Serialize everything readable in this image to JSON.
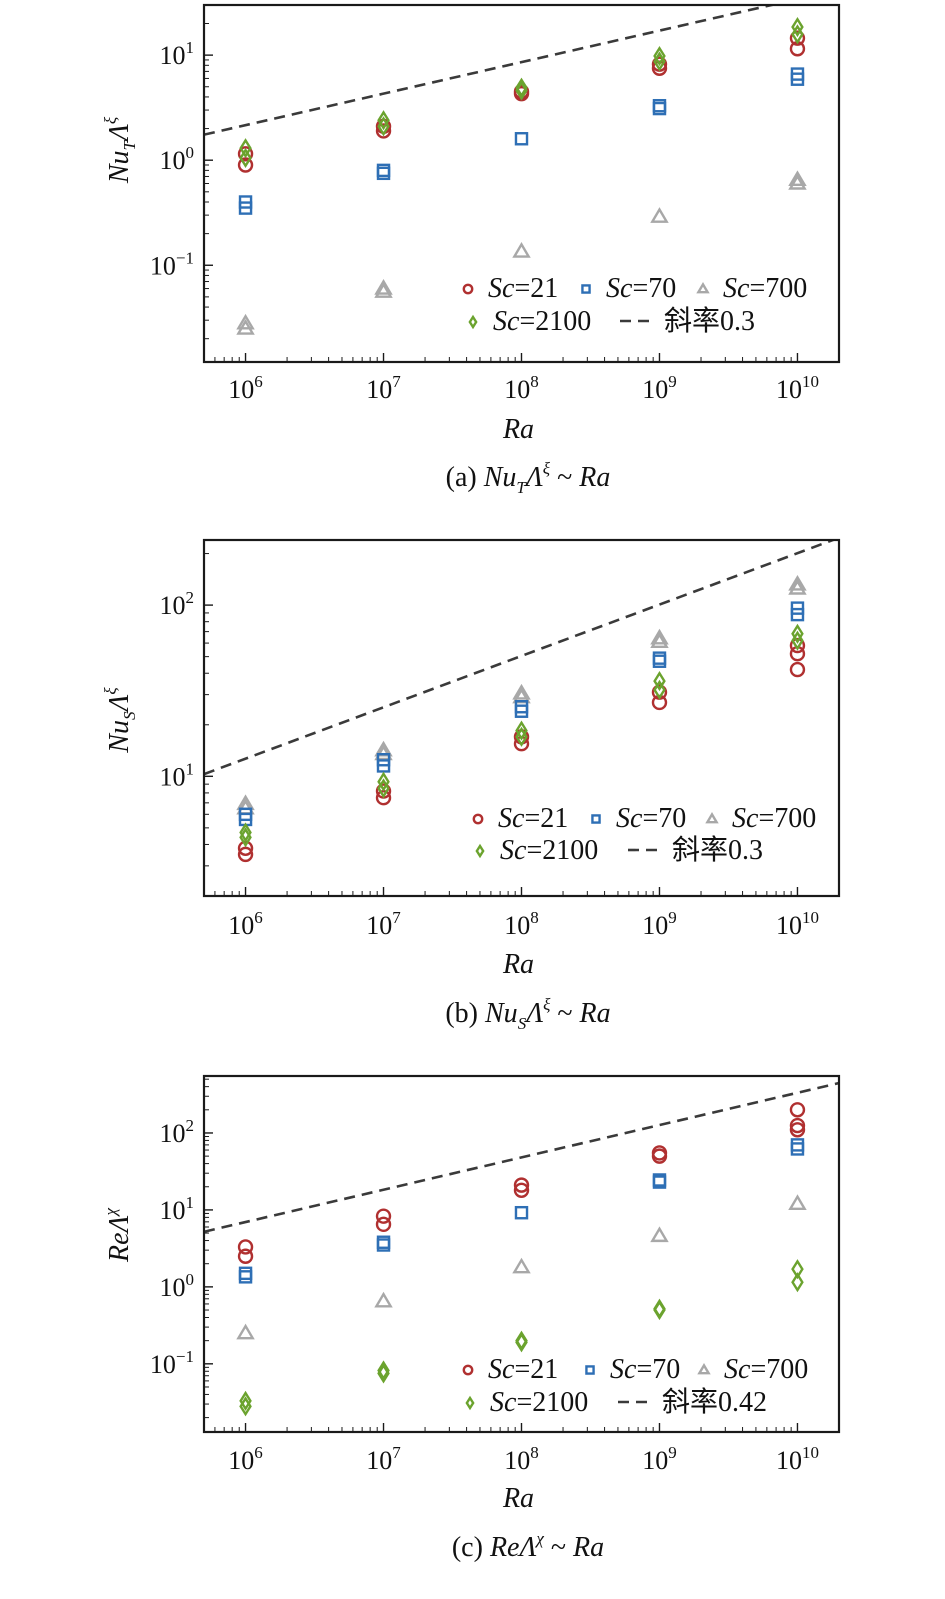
{
  "colors": {
    "sc21": "#b03030",
    "sc70": "#2e6fb5",
    "sc700": "#a8a8a8",
    "sc2100": "#6ba32e",
    "fit": "#3a3a3a"
  },
  "chart_data": [
    {
      "id": "a",
      "type": "scatter",
      "xscale": "log",
      "yscale": "log",
      "xlim": [
        500000,
        20000000000
      ],
      "ylim": [
        0.012,
        30
      ],
      "xticks": [
        1000000,
        10000000,
        100000000,
        1000000000,
        10000000000
      ],
      "xtick_labels": [
        [
          "10",
          "6"
        ],
        [
          "10",
          "7"
        ],
        [
          "10",
          "8"
        ],
        [
          "10",
          "9"
        ],
        [
          "10",
          "10"
        ]
      ],
      "yticks": [
        0.1,
        1,
        10
      ],
      "ytick_labels": [
        [
          "10",
          "−1"
        ],
        [
          "10",
          "0"
        ],
        [
          "10",
          "1"
        ]
      ],
      "xlabel": "Ra",
      "ylabel": {
        "main": "Nu",
        "sub": "T",
        "tail": "Λ",
        "sup": "ξ"
      },
      "caption": {
        "prefix": "(a) ",
        "q_main": "Nu",
        "q_sub": "T",
        "q_tail": "Λ",
        "q_sup": "ξ",
        "rest": " ~ Ra"
      },
      "series": [
        {
          "name": "Sc=21",
          "label_italic": "Sc",
          "label_rest": "=21",
          "marker": "circle",
          "color_key": "sc21",
          "points": [
            [
              1000000,
              0.9
            ],
            [
              1000000,
              1.15
            ],
            [
              10000000,
              1.9
            ],
            [
              10000000,
              2.1
            ],
            [
              100000000,
              4.3
            ],
            [
              100000000,
              4.5
            ],
            [
              1000000000,
              7.5
            ],
            [
              1000000000,
              8.2
            ],
            [
              10000000000,
              11.5
            ],
            [
              10000000000,
              14.5
            ]
          ]
        },
        {
          "name": "Sc=70",
          "label_italic": "Sc",
          "label_rest": "=70",
          "marker": "square",
          "color_key": "sc70",
          "points": [
            [
              1000000,
              0.35
            ],
            [
              1000000,
              0.4
            ],
            [
              10000000,
              0.75
            ],
            [
              10000000,
              0.8
            ],
            [
              100000000,
              1.6
            ],
            [
              1000000000,
              3.1
            ],
            [
              1000000000,
              3.3
            ],
            [
              10000000000,
              5.9
            ],
            [
              10000000000,
              6.6
            ]
          ]
        },
        {
          "name": "Sc=700",
          "label_italic": "Sc",
          "label_rest": "=700",
          "marker": "triangle",
          "color_key": "sc700",
          "points": [
            [
              1000000,
              0.025
            ],
            [
              1000000,
              0.028
            ],
            [
              10000000,
              0.056
            ],
            [
              10000000,
              0.06
            ],
            [
              100000000,
              0.135
            ],
            [
              1000000000,
              0.29
            ],
            [
              10000000000,
              0.6
            ],
            [
              10000000000,
              0.65
            ]
          ]
        },
        {
          "name": "Sc=2100",
          "label_italic": "Sc",
          "label_rest": "=2100",
          "marker": "diamond",
          "color_key": "sc2100",
          "points": [
            [
              1000000,
              1.05
            ],
            [
              1000000,
              1.3
            ],
            [
              10000000,
              2.1
            ],
            [
              10000000,
              2.4
            ],
            [
              100000000,
              4.6
            ],
            [
              100000000,
              4.9
            ],
            [
              1000000000,
              8.7
            ],
            [
              1000000000,
              9.8
            ],
            [
              10000000000,
              15.8
            ],
            [
              10000000000,
              18.5
            ]
          ]
        }
      ],
      "fit": {
        "label": "斜率0.3",
        "slope": 0.3,
        "x0": 500000,
        "y0": 1.75
      }
    },
    {
      "id": "b",
      "type": "scatter",
      "xscale": "log",
      "yscale": "log",
      "xlim": [
        500000,
        20000000000
      ],
      "ylim": [
        2,
        240
      ],
      "xticks": [
        1000000,
        10000000,
        100000000,
        1000000000,
        10000000000
      ],
      "xtick_labels": [
        [
          "10",
          "6"
        ],
        [
          "10",
          "7"
        ],
        [
          "10",
          "8"
        ],
        [
          "10",
          "9"
        ],
        [
          "10",
          "10"
        ]
      ],
      "yticks": [
        10,
        100
      ],
      "ytick_labels": [
        [
          "10",
          "1"
        ],
        [
          "10",
          "2"
        ]
      ],
      "xlabel": "Ra",
      "ylabel": {
        "main": "Nu",
        "sub": "S",
        "tail": "Λ",
        "sup": "ξ"
      },
      "caption": {
        "prefix": "(b) ",
        "q_main": "Nu",
        "q_sub": "S",
        "q_tail": "Λ",
        "q_sup": "ξ",
        "rest": " ~ Ra"
      },
      "series": [
        {
          "name": "Sc=21",
          "label_italic": "Sc",
          "label_rest": "=21",
          "marker": "circle",
          "color_key": "sc21",
          "points": [
            [
              1000000,
              3.5
            ],
            [
              1000000,
              3.8
            ],
            [
              10000000,
              7.5
            ],
            [
              10000000,
              8.2
            ],
            [
              100000000,
              15.5
            ],
            [
              100000000,
              17
            ],
            [
              1000000000,
              27
            ],
            [
              1000000000,
              31
            ],
            [
              10000000000,
              42
            ],
            [
              10000000000,
              52
            ],
            [
              10000000000,
              58
            ]
          ]
        },
        {
          "name": "Sc=70",
          "label_italic": "Sc",
          "label_rest": "=70",
          "marker": "square",
          "color_key": "sc70",
          "points": [
            [
              1000000,
              5.6
            ],
            [
              1000000,
              6
            ],
            [
              10000000,
              11.5
            ],
            [
              10000000,
              12.5
            ],
            [
              100000000,
              24
            ],
            [
              100000000,
              25.5
            ],
            [
              1000000000,
              47
            ],
            [
              1000000000,
              49
            ],
            [
              10000000000,
              88
            ],
            [
              10000000000,
              96
            ]
          ]
        },
        {
          "name": "Sc=700",
          "label_italic": "Sc",
          "label_rest": "=700",
          "marker": "triangle",
          "color_key": "sc700",
          "points": [
            [
              1000000,
              6.5
            ],
            [
              1000000,
              6.9
            ],
            [
              10000000,
              13.5
            ],
            [
              10000000,
              14.2
            ],
            [
              100000000,
              29
            ],
            [
              100000000,
              30.5
            ],
            [
              1000000000,
              61
            ],
            [
              1000000000,
              64
            ],
            [
              10000000000,
              125
            ],
            [
              10000000000,
              132
            ]
          ]
        },
        {
          "name": "Sc=2100",
          "label_italic": "Sc",
          "label_rest": "=2100",
          "marker": "diamond",
          "color_key": "sc2100",
          "points": [
            [
              1000000,
              4.4
            ],
            [
              1000000,
              4.7
            ],
            [
              10000000,
              8.5
            ],
            [
              10000000,
              9.3
            ],
            [
              100000000,
              17
            ],
            [
              100000000,
              18.5
            ],
            [
              1000000000,
              32
            ],
            [
              1000000000,
              36
            ],
            [
              10000000000,
              62
            ],
            [
              10000000000,
              68
            ]
          ]
        }
      ],
      "fit": {
        "label": "斜率0.3",
        "slope": 0.3,
        "x0": 500000,
        "y0": 10.3
      }
    },
    {
      "id": "c",
      "type": "scatter",
      "xscale": "log",
      "yscale": "log",
      "xlim": [
        500000,
        20000000000
      ],
      "ylim": [
        0.013,
        550
      ],
      "xticks": [
        1000000,
        10000000,
        100000000,
        1000000000,
        10000000000
      ],
      "xtick_labels": [
        [
          "10",
          "6"
        ],
        [
          "10",
          "7"
        ],
        [
          "10",
          "8"
        ],
        [
          "10",
          "9"
        ],
        [
          "10",
          "10"
        ]
      ],
      "yticks": [
        0.1,
        1,
        10,
        100
      ],
      "ytick_labels": [
        [
          "10",
          "−1"
        ],
        [
          "10",
          "0"
        ],
        [
          "10",
          "1"
        ],
        [
          "10",
          "2"
        ]
      ],
      "xlabel": "Ra",
      "ylabel": {
        "main": "Re",
        "sub": "",
        "tail": "Λ",
        "sup": "χ"
      },
      "caption": {
        "prefix": "(c) ",
        "q_main": "Re",
        "q_sub": "",
        "q_tail": "Λ",
        "q_sup": "χ",
        "rest": " ~ Ra"
      },
      "series": [
        {
          "name": "Sc=21",
          "label_italic": "Sc",
          "label_rest": "=21",
          "marker": "circle",
          "color_key": "sc21",
          "points": [
            [
              1000000,
              2.5
            ],
            [
              1000000,
              3.3
            ],
            [
              10000000,
              6.5
            ],
            [
              10000000,
              8.3
            ],
            [
              100000000,
              18
            ],
            [
              100000000,
              21
            ],
            [
              1000000000,
              50
            ],
            [
              1000000000,
              55
            ],
            [
              10000000000,
              110
            ],
            [
              10000000000,
              125
            ],
            [
              10000000000,
              200
            ]
          ]
        },
        {
          "name": "Sc=70",
          "label_italic": "Sc",
          "label_rest": "=70",
          "marker": "square",
          "color_key": "sc70",
          "points": [
            [
              1000000,
              1.35
            ],
            [
              1000000,
              1.5
            ],
            [
              10000000,
              3.5
            ],
            [
              10000000,
              3.8
            ],
            [
              100000000,
              9.2
            ],
            [
              1000000000,
              23
            ],
            [
              1000000000,
              24.5
            ],
            [
              10000000000,
              62
            ],
            [
              10000000000,
              70
            ]
          ]
        },
        {
          "name": "Sc=700",
          "label_italic": "Sc",
          "label_rest": "=700",
          "marker": "triangle",
          "color_key": "sc700",
          "points": [
            [
              1000000,
              0.25
            ],
            [
              10000000,
              0.65
            ],
            [
              100000000,
              1.8
            ],
            [
              1000000000,
              4.6
            ],
            [
              10000000000,
              12
            ]
          ]
        },
        {
          "name": "Sc=2100",
          "label_italic": "Sc",
          "label_rest": "=2100",
          "marker": "diamond",
          "color_key": "sc2100",
          "points": [
            [
              1000000,
              0.028
            ],
            [
              1000000,
              0.033
            ],
            [
              10000000,
              0.075
            ],
            [
              10000000,
              0.082
            ],
            [
              100000000,
              0.19
            ],
            [
              100000000,
              0.2
            ],
            [
              1000000000,
              0.5
            ],
            [
              1000000000,
              0.52
            ],
            [
              10000000000,
              1.15
            ],
            [
              10000000000,
              1.7
            ]
          ]
        }
      ],
      "fit": {
        "label": "斜率0.42",
        "slope": 0.42,
        "x0": 500000,
        "y0": 5.2
      }
    }
  ]
}
